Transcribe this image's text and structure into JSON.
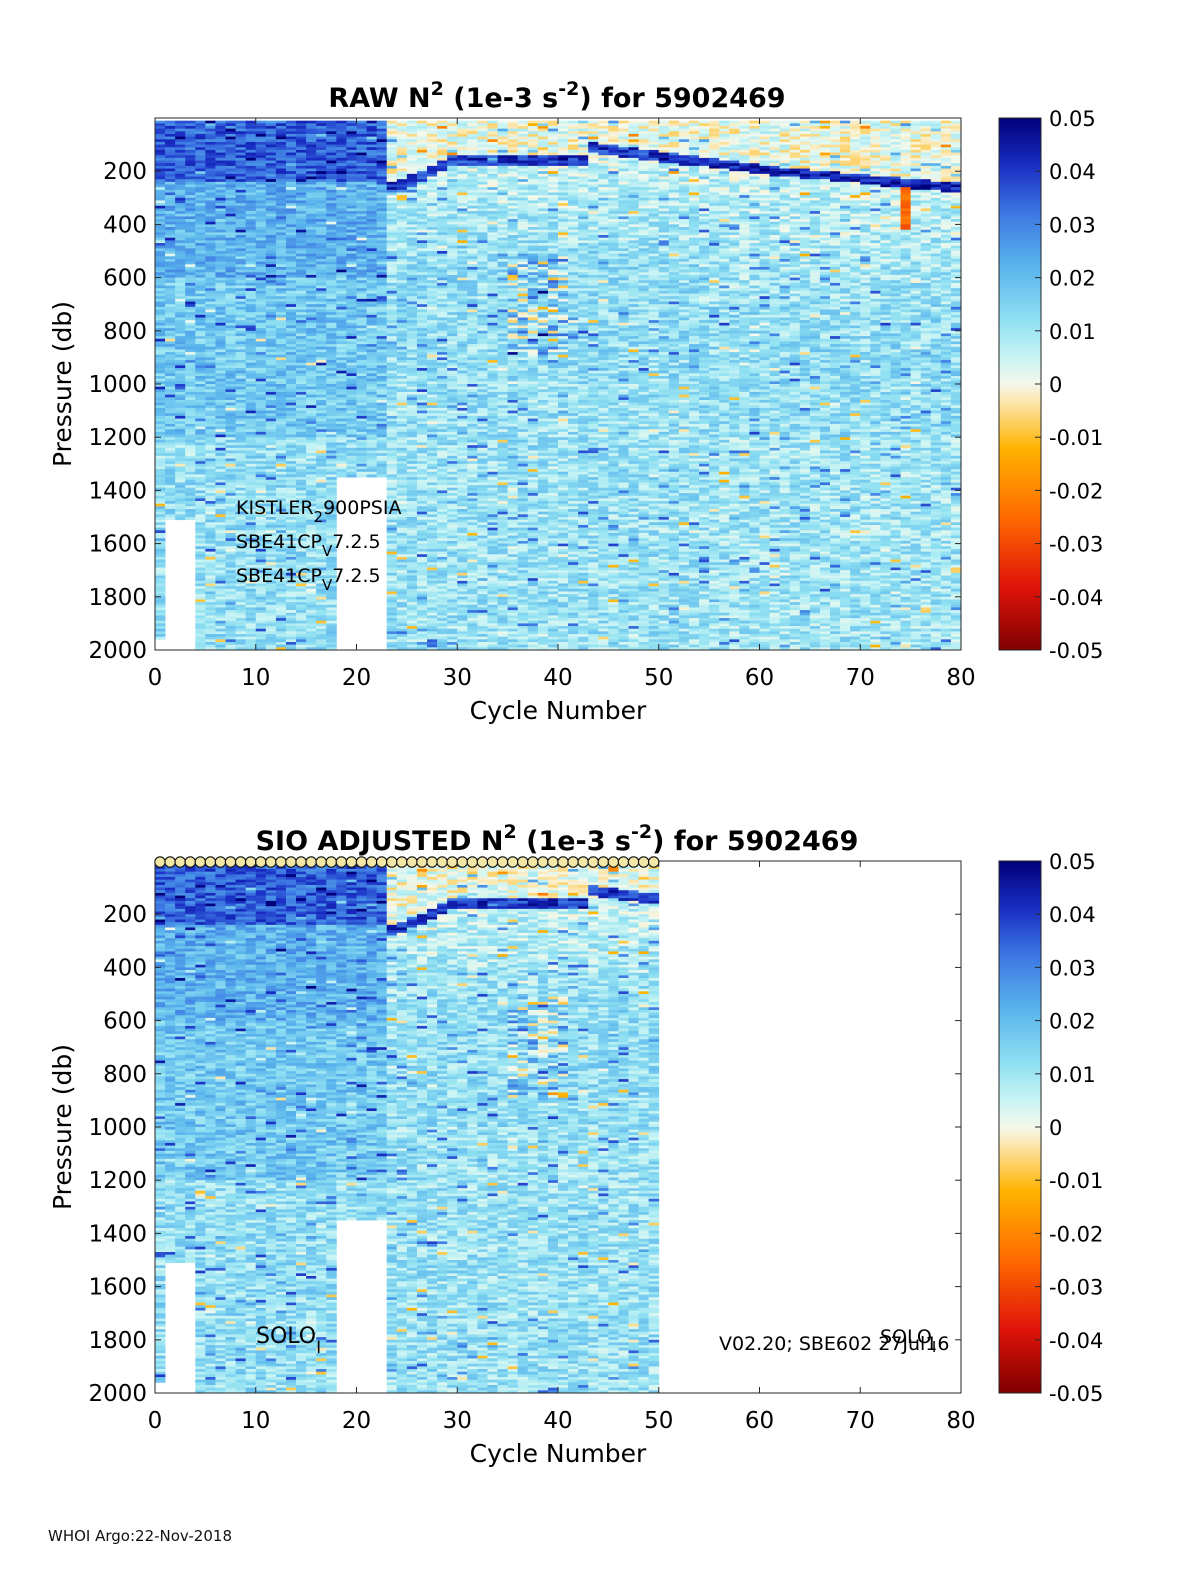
{
  "footer": "WHOI Argo:22-Nov-2018",
  "chart_data": [
    {
      "type": "heatmap",
      "title_prefix": "RAW N",
      "title_sup1": "2",
      "title_mid": " (1e-3 s",
      "title_sup2": "-2",
      "title_suffix": ") for 5902469",
      "xlabel": "Cycle Number",
      "ylabel": "Pressure (db)",
      "xlim": [
        0,
        80
      ],
      "ylim": [
        0,
        2000
      ],
      "y_reversed": true,
      "xticks": [
        0,
        10,
        20,
        30,
        40,
        50,
        60,
        70,
        80
      ],
      "yticks": [
        200,
        400,
        600,
        800,
        1000,
        1200,
        1400,
        1600,
        1800,
        2000
      ],
      "last_cycle": 80,
      "colorbar": {
        "min": -0.05,
        "max": 0.05,
        "ticks": [
          "0.05",
          "0.04",
          "0.03",
          "0.02",
          "0.01",
          "0",
          "-0.01",
          "-0.02",
          "-0.03",
          "-0.04",
          "-0.05"
        ]
      },
      "annotations": [
        {
          "base": "KISTLER",
          "sub": "2",
          "rest": "900PSIA"
        },
        {
          "base": "SBE41CP",
          "sub": "V",
          "rest": "7.2.5"
        },
        {
          "base": "SBE41CP",
          "sub": "V",
          "rest": "7.2.5"
        }
      ]
    },
    {
      "type": "heatmap",
      "title_prefix": "SIO  ADJUSTED N",
      "title_sup1": "2",
      "title_mid": " (1e-3 s",
      "title_sup2": "-2",
      "title_suffix": ") for 5902469",
      "xlabel": "Cycle Number",
      "ylabel": "Pressure (db)",
      "xlim": [
        0,
        80
      ],
      "ylim": [
        0,
        2000
      ],
      "y_reversed": true,
      "xticks": [
        0,
        10,
        20,
        30,
        40,
        50,
        60,
        70,
        80
      ],
      "yticks": [
        200,
        400,
        600,
        800,
        1000,
        1200,
        1400,
        1600,
        1800,
        2000
      ],
      "last_cycle": 50,
      "colorbar": {
        "min": -0.05,
        "max": 0.05,
        "ticks": [
          "0.05",
          "0.04",
          "0.03",
          "0.02",
          "0.01",
          "0",
          "-0.01",
          "-0.02",
          "-0.03",
          "-0.04",
          "-0.05"
        ]
      },
      "annotations": [
        {
          "base": "SOLO",
          "sub": "I",
          "rest": ""
        },
        {
          "base": "V02.20; SBE602 27Jul16",
          "sub": "",
          "rest": ""
        },
        {
          "base": "SOLO",
          "sub": "I",
          "rest": ""
        }
      ]
    }
  ]
}
